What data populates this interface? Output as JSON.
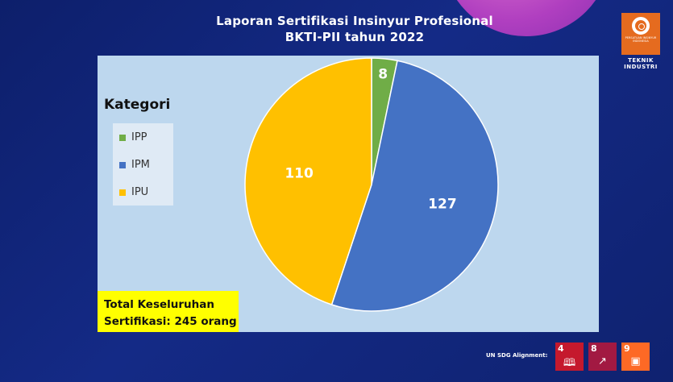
{
  "header": {
    "title_line1": "Laporan Sertifikasi Insinyur Profesional",
    "title_line2": "BKTI-PII tahun 2022"
  },
  "logo": {
    "icon": "pii-logo-icon",
    "org_text": "PERSATUAN INSINYUR INDONESIA",
    "unit_line1": "TEKNIK",
    "unit_line2": "INDUSTRI",
    "color": "#e56b1f"
  },
  "chart_data": {
    "type": "pie",
    "legend_title": "Kategori",
    "legend_position": "left",
    "slices": [
      {
        "label": "IPP",
        "value": 8,
        "color": "#70ad47"
      },
      {
        "label": "IPM",
        "value": 127,
        "color": "#4472c4"
      },
      {
        "label": "IPU",
        "value": 110,
        "color": "#ffc000"
      }
    ]
  },
  "total": {
    "line1": "Total Keseluruhan",
    "line2": "Sertifikasi: 245 orang"
  },
  "sdg": {
    "label": "UN SDG Alignment:",
    "goals": [
      {
        "number": "4",
        "icon": "book-icon",
        "color": "#c5192d"
      },
      {
        "number": "8",
        "icon": "growth-chart-icon",
        "color": "#a21942"
      },
      {
        "number": "9",
        "icon": "cubes-icon",
        "color": "#fd6925"
      }
    ]
  }
}
